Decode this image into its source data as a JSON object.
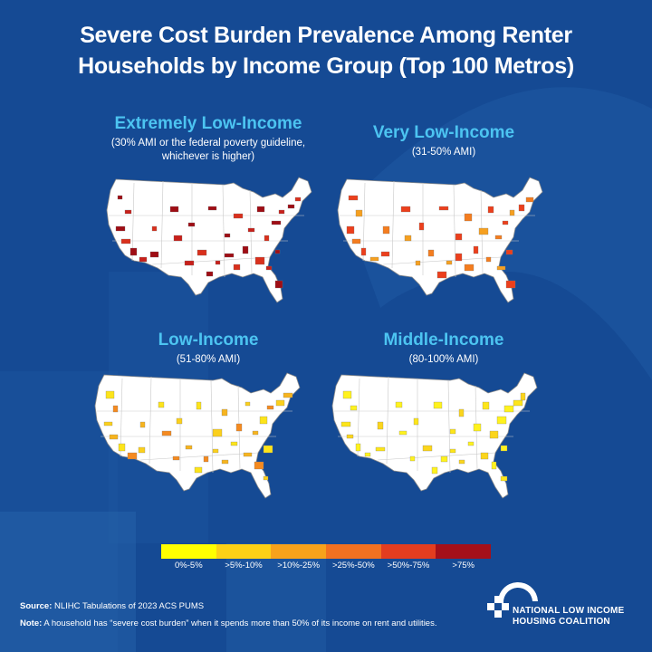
{
  "title": {
    "line1": "Severe Cost Burden Prevalence Among Renter",
    "line2": "Households by Income Group (Top 100 Metros)"
  },
  "maps": [
    {
      "heading": "Extremely Low-Income",
      "sub1": "(30% AMI or the federal poverty guideline,",
      "sub2": "whichever is higher)",
      "palette": [
        "#9f0d14",
        "#c8201a",
        "#9f0d14",
        "#d9301c"
      ]
    },
    {
      "heading": "Very Low-Income",
      "sub1": "(31-50% AMI)",
      "sub2": "",
      "palette": [
        "#f47d1f",
        "#ec3f1c",
        "#f6a020",
        "#ec3f1c"
      ]
    },
    {
      "heading": "Low-Income",
      "sub1": "(51-80% AMI)",
      "sub2": "",
      "palette": [
        "#fbd01c",
        "#f7b41e",
        "#fde41a",
        "#f58a20"
      ]
    },
    {
      "heading": "Middle-Income",
      "sub1": "(80-100% AMI)",
      "sub2": "",
      "palette": [
        "#fff21e",
        "#fde51a",
        "#fbd51c",
        "#fff21e"
      ]
    }
  ],
  "legend": {
    "items": [
      {
        "label": "0%-5%",
        "color": "#ffff00"
      },
      {
        "label": ">5%-10%",
        "color": "#fcd116"
      },
      {
        "label": ">10%-25%",
        "color": "#f7a21b"
      },
      {
        "label": ">25%-50%",
        "color": "#f27120"
      },
      {
        "label": ">50%-75%",
        "color": "#e33d1f"
      },
      {
        "label": ">75%",
        "color": "#a4101a"
      }
    ]
  },
  "footer": {
    "source_label": "Source:",
    "source_text": " NLIHC Tabulations of 2023 ACS PUMS",
    "note_label": "Note:",
    "note_text": " A household has “severe cost burden” when it spends more than 50% of its income on rent and utilities."
  },
  "logo": {
    "line1": "NATIONAL LOW INCOME",
    "line2": "HOUSING COALITION"
  },
  "colors": {
    "background": "#154a94",
    "heading": "#4cc4f1"
  }
}
